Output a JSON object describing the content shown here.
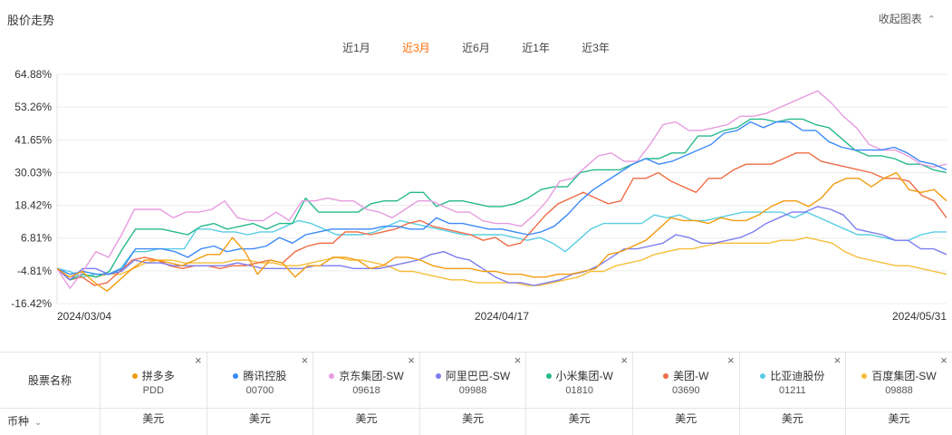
{
  "header": {
    "title": "股价走势",
    "collapse_label": "收起图表"
  },
  "tabs": [
    {
      "label": "近1月",
      "active": false
    },
    {
      "label": "近3月",
      "active": true
    },
    {
      "label": "近6月",
      "active": false
    },
    {
      "label": "近1年",
      "active": false
    },
    {
      "label": "近3年",
      "active": false
    }
  ],
  "chart_data": {
    "type": "line",
    "y_ticks": [
      "64.88%",
      "53.26%",
      "41.65%",
      "30.03%",
      "18.42%",
      "6.81%",
      "-4.81%",
      "-16.42%"
    ],
    "y_tick_values": [
      64.88,
      53.26,
      41.65,
      30.03,
      18.42,
      6.81,
      -4.81,
      -16.42
    ],
    "ylim": [
      -16.42,
      64.88
    ],
    "x_labels": [
      "2024/03/04",
      "2024/04/17",
      "2024/05/31"
    ],
    "grid": true,
    "series": [
      {
        "name": "拼多多",
        "color": "#f39c12",
        "values": [
          -4,
          -7,
          -5,
          -9,
          -12,
          -8,
          -4,
          -1,
          -1,
          -2,
          -3,
          -1,
          1,
          1,
          7,
          2,
          -6,
          -1,
          -2,
          -7,
          -3,
          -3,
          0,
          0,
          -1,
          -4,
          -3,
          0,
          0,
          -1,
          -3,
          -4,
          -4,
          -4,
          -5,
          -5,
          -6,
          -6,
          -7,
          -7,
          -6,
          -6,
          -5,
          -4,
          1,
          2,
          4,
          6,
          10,
          14,
          13,
          13,
          12,
          14,
          13,
          13,
          15,
          18,
          20,
          20,
          18,
          21,
          26,
          28,
          28,
          25,
          28,
          30,
          24,
          23,
          24,
          20
        ]
      },
      {
        "name": "腾讯控股",
        "color": "#3d8af7",
        "values": [
          -4,
          -6,
          -5,
          -6,
          -6,
          -4,
          3,
          3,
          3,
          2,
          0,
          3,
          4,
          2,
          3,
          3,
          4,
          7,
          5,
          8,
          9,
          10,
          10,
          10,
          10,
          11,
          11,
          10,
          10,
          14,
          12,
          12,
          11,
          10,
          10,
          9,
          8,
          9,
          11,
          15,
          20,
          24,
          27,
          30,
          33,
          35,
          33,
          34,
          36,
          38,
          40,
          44,
          45,
          48,
          46,
          48,
          48,
          45,
          45,
          41,
          39,
          38,
          38,
          38,
          39,
          37,
          34,
          33,
          31
        ]
      },
      {
        "name": "京东集团-SW",
        "color": "#e79be0",
        "values": [
          -4,
          -11,
          -5,
          2,
          0,
          8,
          17,
          17,
          17,
          14,
          16,
          16,
          17,
          20,
          14,
          13,
          13,
          16,
          13,
          20,
          20,
          21,
          20,
          20,
          17,
          16,
          14,
          17,
          20,
          20,
          18,
          16,
          16,
          13,
          12,
          12,
          11,
          15,
          20,
          27,
          28,
          32,
          36,
          37,
          34,
          34,
          40,
          47,
          48,
          45,
          45,
          46,
          47,
          50,
          50,
          51,
          53,
          55,
          57,
          59,
          55,
          50,
          46,
          40,
          38,
          38,
          36,
          33,
          32,
          33
        ]
      },
      {
        "name": "阿里巴巴-SW",
        "color": "#7c7cf0",
        "values": [
          -4,
          -8,
          -4,
          -4,
          -6,
          -5,
          -1,
          -2,
          -2,
          -3,
          -3,
          -3,
          -3,
          -3,
          -2,
          -3,
          -4,
          -4,
          -4,
          -4,
          -3,
          -3,
          -3,
          -4,
          -4,
          -4,
          -3,
          -2,
          -1,
          1,
          2,
          0,
          -1,
          -4,
          -7,
          -9,
          -9,
          -10,
          -9,
          -8,
          -6,
          -5,
          -3,
          0,
          3,
          3,
          4,
          5,
          8,
          7,
          5,
          5,
          6,
          7,
          9,
          12,
          14,
          16,
          16,
          18,
          17,
          15,
          10,
          9,
          8,
          6,
          6,
          3,
          3,
          1
        ]
      },
      {
        "name": "小米集团-W",
        "color": "#26b98d",
        "values": [
          -4,
          -8,
          -6,
          -7,
          -5,
          3,
          10,
          10,
          10,
          9,
          8,
          11,
          12,
          10,
          11,
          12,
          10,
          12,
          12,
          21,
          16,
          16,
          16,
          16,
          19,
          20,
          20,
          23,
          23,
          18,
          20,
          20,
          19,
          18,
          18,
          19,
          21,
          24,
          25,
          25,
          30,
          31,
          31,
          31,
          33,
          35,
          35,
          37,
          37,
          43,
          43,
          45,
          46,
          49,
          49,
          48,
          49,
          49,
          47,
          46,
          42,
          38,
          36,
          36,
          35,
          33,
          33,
          31,
          30
        ]
      },
      {
        "name": "美团-W",
        "color": "#ef6c45",
        "values": [
          -4,
          -8,
          -7,
          -10,
          -9,
          -5,
          -1,
          0,
          -1,
          -3,
          -4,
          -3,
          -3,
          -4,
          -3,
          -3,
          -2,
          -1,
          -2,
          2,
          4,
          5,
          5,
          9,
          9,
          8,
          9,
          10,
          12,
          13,
          11,
          10,
          9,
          8,
          6,
          7,
          4,
          5,
          10,
          15,
          19,
          21,
          23,
          21,
          19,
          20,
          28,
          28,
          30,
          27,
          25,
          23,
          28,
          28,
          31,
          33,
          33,
          33,
          35,
          37,
          37,
          34,
          33,
          32,
          31,
          30,
          28,
          28,
          27,
          22,
          20,
          14
        ]
      },
      {
        "name": "比亚迪股份",
        "color": "#5acde3",
        "values": [
          -4,
          -5,
          -7,
          -6,
          -6,
          -4,
          2,
          2,
          3,
          3,
          3,
          10,
          10,
          9,
          9,
          8,
          9,
          9,
          11,
          13,
          12,
          10,
          8,
          8,
          8,
          9,
          11,
          13,
          12,
          11,
          10,
          9,
          8,
          8,
          8,
          8,
          7,
          6,
          7,
          5,
          2,
          6,
          10,
          12,
          12,
          12,
          12,
          15,
          14,
          15,
          13,
          13,
          14,
          15,
          16,
          16,
          16,
          16,
          14,
          16,
          14,
          12,
          10,
          8,
          8,
          7,
          6,
          6,
          8,
          9,
          9
        ]
      },
      {
        "name": "百度集团-SW",
        "color": "#f7bd3b",
        "values": [
          -4,
          -8,
          -6,
          -7,
          -6,
          -6,
          -4,
          -2,
          -1,
          -1,
          -2,
          -2,
          -2,
          -2,
          -1,
          -1,
          -2,
          -2,
          -3,
          -3,
          -2,
          -1,
          0,
          -1,
          -1,
          -2,
          -3,
          -5,
          -5,
          -6,
          -7,
          -8,
          -8,
          -9,
          -9,
          -9,
          -9,
          -10,
          -10,
          -9,
          -8,
          -7,
          -5,
          -5,
          -3,
          -2,
          -1,
          1,
          2,
          3,
          3,
          4,
          5,
          5,
          5,
          5,
          5,
          6,
          6,
          7,
          6,
          5,
          2,
          0,
          -1,
          -2,
          -3,
          -3,
          -4,
          -5,
          -6
        ]
      }
    ]
  },
  "stock_table": {
    "header_label": "股票名称",
    "currency_label": "币种",
    "stocks": [
      {
        "name": "拼多多",
        "code": "PDD",
        "currency": "美元",
        "color": "#f39c12"
      },
      {
        "name": "腾讯控股",
        "code": "00700",
        "currency": "美元",
        "color": "#3d8af7"
      },
      {
        "name": "京东集团-SW",
        "code": "09618",
        "currency": "美元",
        "color": "#e79be0"
      },
      {
        "name": "阿里巴巴-SW",
        "code": "09988",
        "currency": "美元",
        "color": "#7c7cf0"
      },
      {
        "name": "小米集团-W",
        "code": "01810",
        "currency": "美元",
        "color": "#26b98d"
      },
      {
        "name": "美团-W",
        "code": "03690",
        "currency": "美元",
        "color": "#ef6c45"
      },
      {
        "name": "比亚迪股份",
        "code": "01211",
        "currency": "美元",
        "color": "#5acde3"
      },
      {
        "name": "百度集团-SW",
        "code": "09888",
        "currency": "美元",
        "color": "#f7bd3b"
      }
    ],
    "close_glyph": "×"
  }
}
